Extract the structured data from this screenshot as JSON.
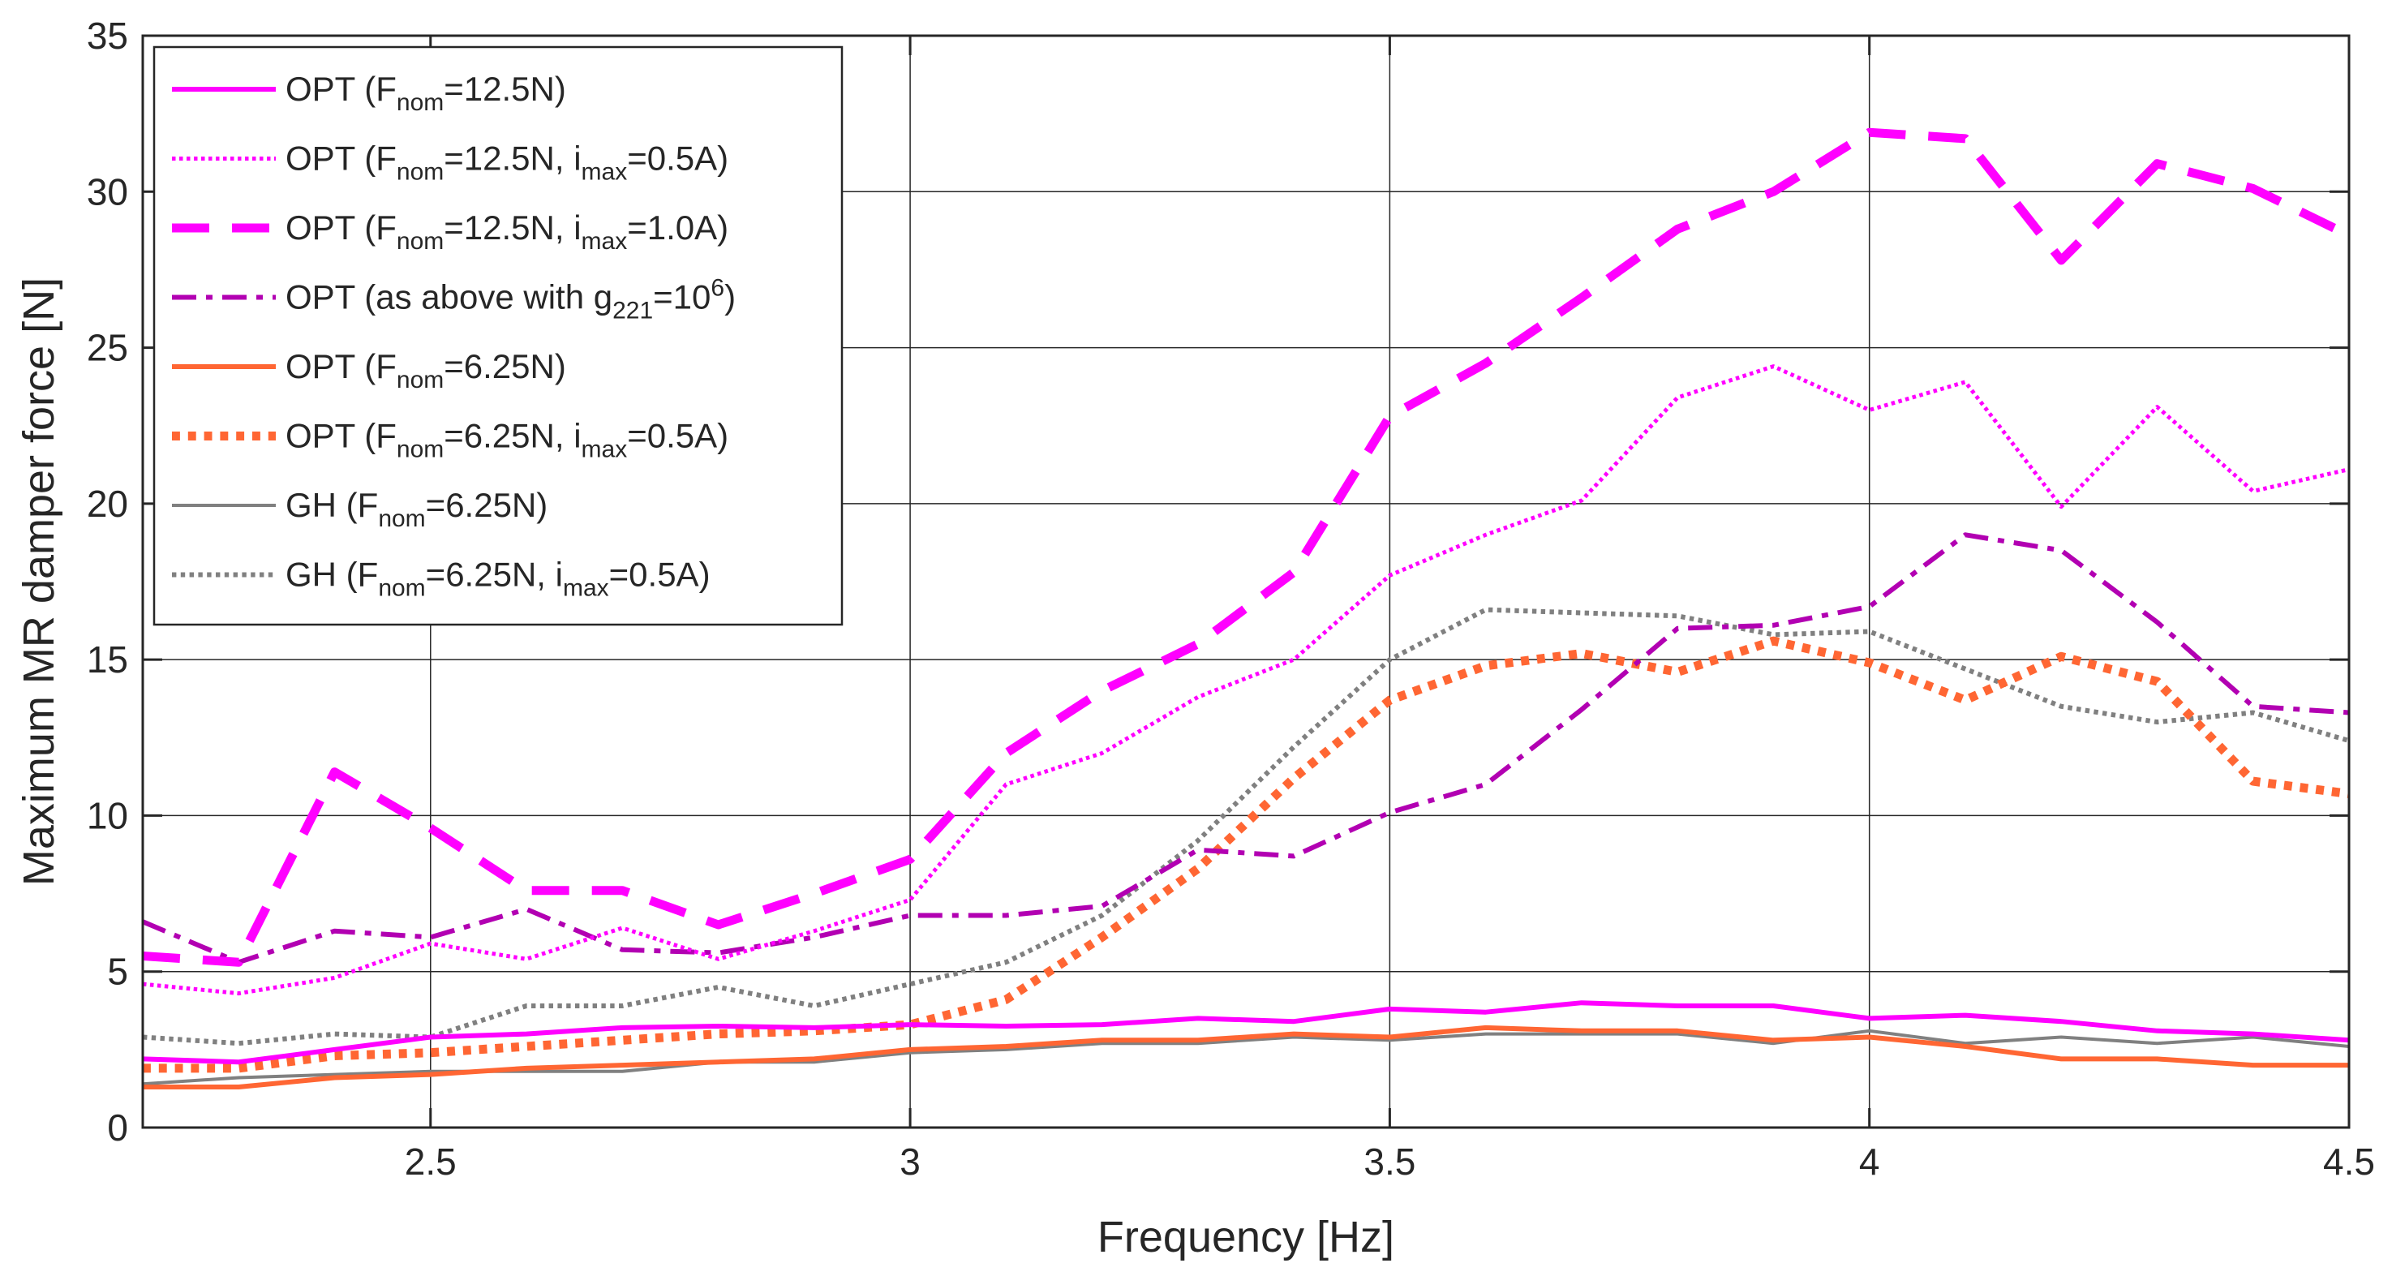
{
  "chart_data": {
    "type": "line",
    "title": "",
    "xlabel": "Frequency [Hz]",
    "ylabel": "Maximum MR damper force [N]",
    "xlim": [
      2.2,
      4.5
    ],
    "ylim": [
      0,
      35
    ],
    "xticks": [
      2.5,
      3,
      3.5,
      4,
      4.5
    ],
    "xtick_labels": [
      "2.5",
      "3",
      "3.5",
      "4",
      "4.5"
    ],
    "yticks": [
      0,
      5,
      10,
      15,
      20,
      25,
      30,
      35
    ],
    "ytick_labels": [
      "0",
      "5",
      "10",
      "15",
      "20",
      "25",
      "30",
      "35"
    ],
    "grid": true,
    "legend_position": "top-left",
    "x": [
      2.2,
      2.3,
      2.4,
      2.5,
      2.6,
      2.7,
      2.8,
      2.9,
      3.0,
      3.1,
      3.2,
      3.3,
      3.4,
      3.5,
      3.6,
      3.7,
      3.8,
      3.9,
      4.0,
      4.1,
      4.2,
      4.3,
      4.4,
      4.5
    ],
    "series": [
      {
        "legend": [
          {
            "t": "OPT (F"
          },
          {
            "t": "nom",
            "s": "sub"
          },
          {
            "t": "=12.5N)"
          }
        ],
        "color": "#ff00ff",
        "style": "solid",
        "width": 6,
        "values": [
          2.2,
          2.1,
          2.5,
          2.9,
          3.0,
          3.2,
          3.25,
          3.2,
          3.3,
          3.25,
          3.3,
          3.5,
          3.4,
          3.8,
          3.7,
          4.0,
          3.9,
          3.9,
          3.5,
          3.6,
          3.4,
          3.1,
          3.0,
          2.8
        ]
      },
      {
        "legend": [
          {
            "t": "OPT (F"
          },
          {
            "t": "nom",
            "s": "sub"
          },
          {
            "t": "=12.5N, i"
          },
          {
            "t": "max",
            "s": "sub"
          },
          {
            "t": "=0.5A)"
          }
        ],
        "color": "#ff00ff",
        "style": "dotted",
        "width": 5,
        "values": [
          4.6,
          4.3,
          4.8,
          5.9,
          5.4,
          6.4,
          5.4,
          6.3,
          7.3,
          11.0,
          12.0,
          13.8,
          15.0,
          17.7,
          19.0,
          20.1,
          23.4,
          24.4,
          23.0,
          23.9,
          19.9,
          23.1,
          20.4,
          21.1
        ]
      },
      {
        "legend": [
          {
            "t": "OPT (F"
          },
          {
            "t": "nom",
            "s": "sub"
          },
          {
            "t": "=12.5N, i"
          },
          {
            "t": "max",
            "s": "sub"
          },
          {
            "t": "=1.0A)"
          }
        ],
        "color": "#ff00ff",
        "style": "dashed",
        "width": 11,
        "values": [
          5.5,
          5.3,
          11.4,
          9.6,
          7.6,
          7.6,
          6.5,
          7.5,
          8.6,
          12.0,
          14.0,
          15.5,
          17.8,
          22.8,
          24.5,
          26.6,
          28.8,
          30.0,
          31.9,
          31.7,
          27.8,
          30.9,
          30.1,
          28.6
        ]
      },
      {
        "legend": [
          {
            "t": "OPT (as above with g"
          },
          {
            "t": "221",
            "s": "sub"
          },
          {
            "t": "=10"
          },
          {
            "t": "6",
            "s": "sup"
          },
          {
            "t": ")"
          }
        ],
        "color": "#b200b2",
        "style": "dashdot",
        "width": 6,
        "values": [
          6.6,
          5.3,
          6.3,
          6.1,
          7.0,
          5.7,
          5.6,
          6.1,
          6.8,
          6.8,
          7.1,
          8.9,
          8.7,
          10.1,
          11.0,
          13.4,
          16.0,
          16.1,
          16.7,
          19.0,
          18.5,
          16.2,
          13.5,
          13.3
        ]
      },
      {
        "legend": [
          {
            "t": "OPT (F"
          },
          {
            "t": "nom",
            "s": "sub"
          },
          {
            "t": "=6.25N)"
          }
        ],
        "color": "#ff6633",
        "style": "solid",
        "width": 6,
        "values": [
          1.3,
          1.3,
          1.6,
          1.7,
          1.9,
          2.0,
          2.1,
          2.2,
          2.5,
          2.6,
          2.8,
          2.8,
          3.0,
          2.9,
          3.2,
          3.1,
          3.1,
          2.8,
          2.9,
          2.6,
          2.2,
          2.2,
          2.0,
          2.0
        ]
      },
      {
        "legend": [
          {
            "t": "OPT (F"
          },
          {
            "t": "nom",
            "s": "sub"
          },
          {
            "t": "=6.25N, i"
          },
          {
            "t": "max",
            "s": "sub"
          },
          {
            "t": "=0.5A)"
          }
        ],
        "color": "#ff6633",
        "style": "dotted",
        "width": 11,
        "values": [
          1.9,
          1.9,
          2.3,
          2.4,
          2.6,
          2.8,
          3.0,
          3.1,
          3.3,
          4.1,
          6.1,
          8.3,
          11.2,
          13.7,
          14.8,
          15.2,
          14.6,
          15.6,
          14.9,
          13.7,
          15.1,
          14.3,
          11.1,
          10.7
        ]
      },
      {
        "legend": [
          {
            "t": "GH (F"
          },
          {
            "t": "nom",
            "s": "sub"
          },
          {
            "t": "=6.25N)"
          }
        ],
        "color": "#808080",
        "style": "solid",
        "width": 4,
        "values": [
          1.4,
          1.6,
          1.7,
          1.8,
          1.8,
          1.8,
          2.1,
          2.1,
          2.4,
          2.5,
          2.7,
          2.7,
          2.9,
          2.8,
          3.0,
          3.0,
          3.0,
          2.7,
          3.1,
          2.7,
          2.9,
          2.7,
          2.9,
          2.6
        ]
      },
      {
        "legend": [
          {
            "t": "GH (F"
          },
          {
            "t": "nom",
            "s": "sub"
          },
          {
            "t": "=6.25N, i"
          },
          {
            "t": "max",
            "s": "sub"
          },
          {
            "t": "=0.5A)"
          }
        ],
        "color": "#808080",
        "style": "dotted",
        "width": 6,
        "values": [
          2.9,
          2.7,
          3.0,
          2.9,
          3.9,
          3.9,
          4.5,
          3.9,
          4.6,
          5.3,
          6.8,
          9.2,
          12.2,
          15.0,
          16.6,
          16.5,
          16.4,
          15.8,
          15.9,
          14.7,
          13.5,
          13.0,
          13.3,
          12.4
        ]
      }
    ]
  }
}
